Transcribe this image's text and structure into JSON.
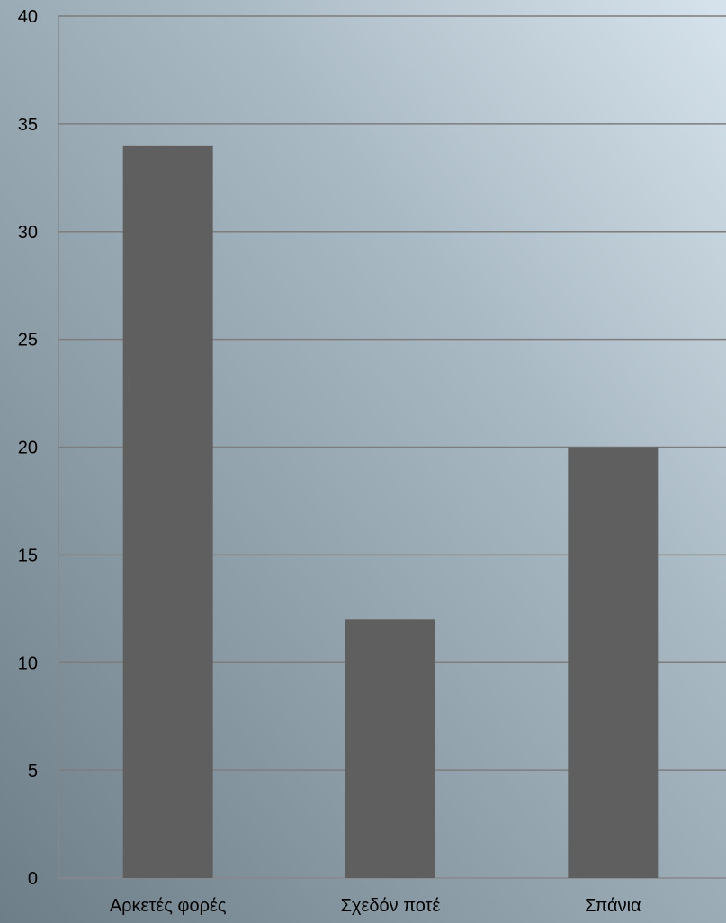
{
  "chart_data": {
    "type": "bar",
    "categories": [
      "Αρκετές φορές",
      "Σχεδόν ποτέ",
      "Σπάνια"
    ],
    "values": [
      34,
      12,
      20
    ],
    "ylim": [
      0,
      40
    ],
    "yticks": [
      0,
      5,
      10,
      15,
      20,
      25,
      30,
      35,
      40
    ],
    "grid": true,
    "colors": {
      "bar": "#5f5f5f",
      "gridline": "#7d7d7d",
      "axis": "#888888"
    }
  }
}
